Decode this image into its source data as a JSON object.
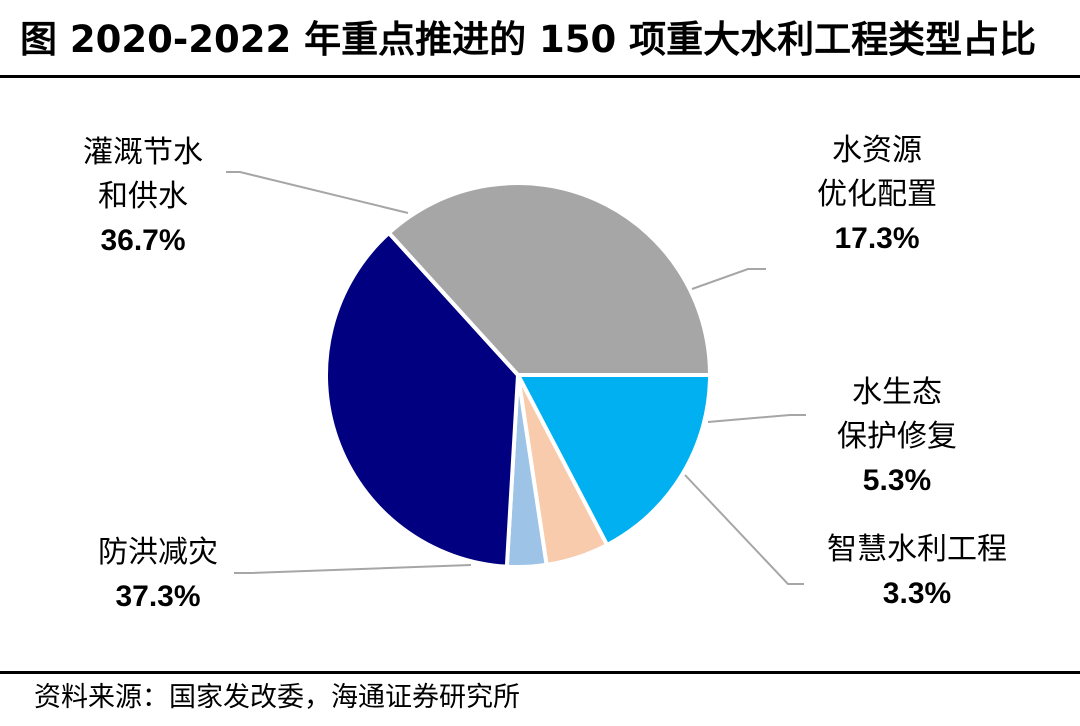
{
  "title": "图 2020-2022 年重点推进的 150 项重大水利工程类型占比",
  "source": "资料来源：国家发改委，海通证券研究所",
  "chart_data": {
    "type": "pie",
    "title": "图 2020-2022 年重点推进的 150 项重大水利工程类型占比",
    "slices": [
      {
        "name": "水资源优化配置",
        "label_lines": [
          "水资源",
          "优化配置"
        ],
        "value": 17.3,
        "value_label": "17.3%",
        "color": "#00B0F0"
      },
      {
        "name": "水生态保护修复",
        "label_lines": [
          "水生态",
          "保护修复"
        ],
        "value": 5.3,
        "value_label": "5.3%",
        "color": "#F8CBAD"
      },
      {
        "name": "智慧水利工程",
        "label_lines": [
          "智慧水利工程"
        ],
        "value": 3.3,
        "value_label": "3.3%",
        "color": "#9DC3E6"
      },
      {
        "name": "防洪减灾",
        "label_lines": [
          "防洪减灾"
        ],
        "value": 37.3,
        "value_label": "37.3%",
        "color": "#000080"
      },
      {
        "name": "灌溉节水和供水",
        "label_lines": [
          "灌溉节水",
          "和供水"
        ],
        "value": 36.7,
        "value_label": "36.7%",
        "color": "#A6A6A6"
      }
    ],
    "start_angle_deg": 0,
    "direction": "clockwise",
    "label_placement": "outside with leader lines"
  }
}
